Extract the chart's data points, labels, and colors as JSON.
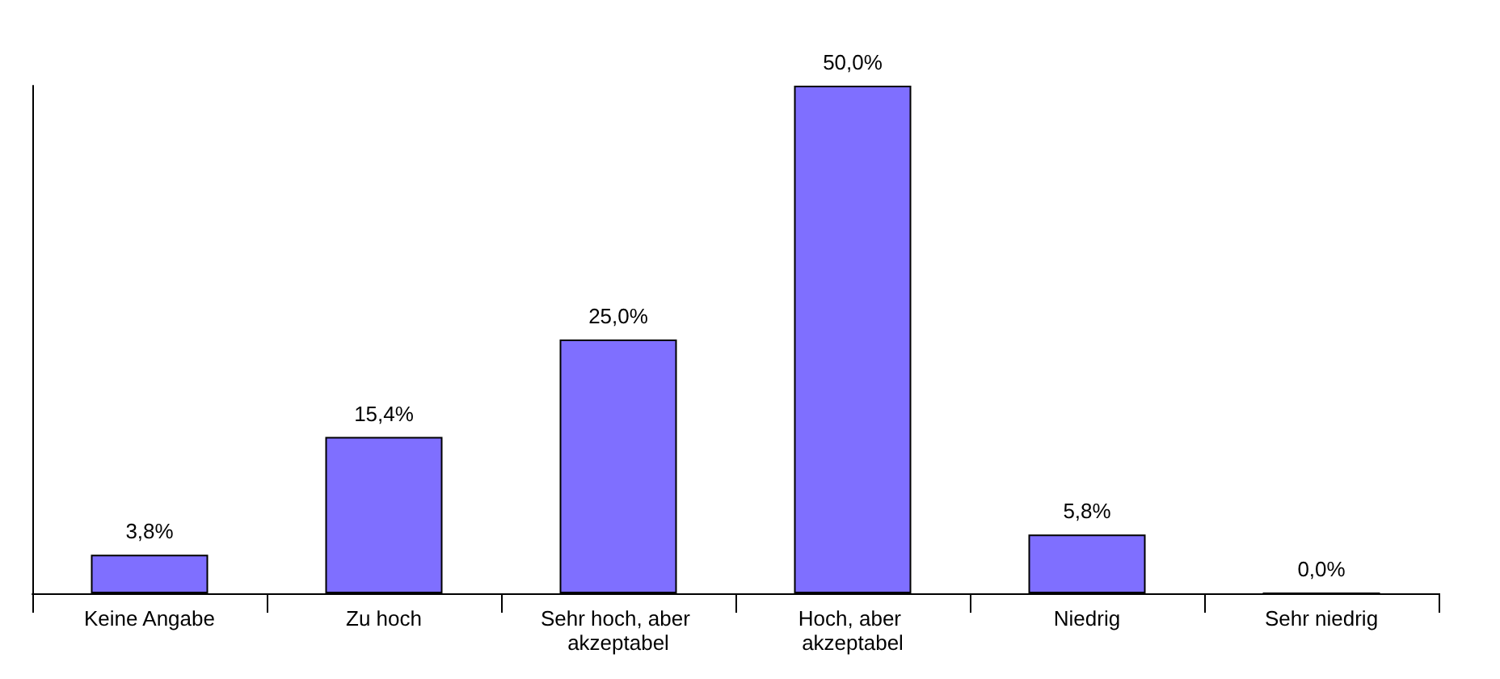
{
  "chart_data": {
    "type": "bar",
    "categories": [
      "Keine Angabe",
      "Zu hoch",
      "Sehr hoch, aber akzeptabel",
      "Hoch, aber akzeptabel",
      "Niedrig",
      "Sehr niedrig"
    ],
    "values": [
      3.8,
      15.4,
      25.0,
      50.0,
      5.8,
      0.0
    ],
    "value_labels": [
      "3,8%",
      "15,4%",
      "25,0%",
      "50,0%",
      "5,8%",
      "0,0%"
    ],
    "color": "#7f6fff",
    "grid": false
  }
}
